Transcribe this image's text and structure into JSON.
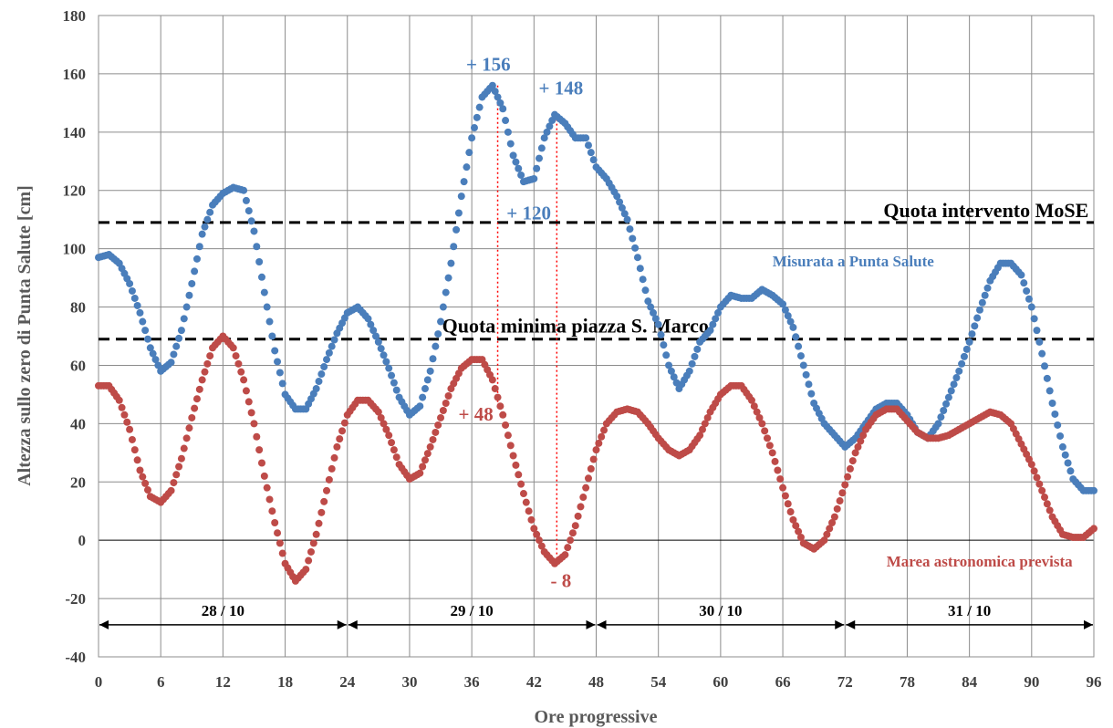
{
  "chart_data": {
    "type": "scatter",
    "title": "",
    "xlabel": "Ore progressive",
    "ylabel": "Altezza sullo zero di Punta Salute  [cm]",
    "xlim": [
      0,
      96
    ],
    "ylim": [
      -40,
      180
    ],
    "xticks": [
      0,
      6,
      12,
      18,
      24,
      30,
      36,
      42,
      48,
      54,
      60,
      66,
      72,
      78,
      84,
      90,
      96
    ],
    "yticks": [
      -40,
      -20,
      0,
      20,
      40,
      60,
      80,
      100,
      120,
      140,
      160,
      180
    ],
    "grid": true,
    "colors": {
      "measured": "#4a7ebb",
      "predicted": "#be4b48",
      "annot_line": "#ff0000"
    },
    "series": [
      {
        "name": "Misurata a Punta Salute",
        "key": "measured",
        "points": [
          [
            0,
            97
          ],
          [
            1,
            98
          ],
          [
            2,
            95
          ],
          [
            3,
            88
          ],
          [
            4,
            78
          ],
          [
            5,
            66
          ],
          [
            6,
            58
          ],
          [
            7,
            61
          ],
          [
            8,
            72
          ],
          [
            9,
            88
          ],
          [
            10,
            105
          ],
          [
            11,
            115
          ],
          [
            12,
            119
          ],
          [
            13,
            121
          ],
          [
            14,
            120
          ],
          [
            15,
            106
          ],
          [
            16,
            85
          ],
          [
            17,
            65
          ],
          [
            18,
            50
          ],
          [
            19,
            45
          ],
          [
            20,
            45
          ],
          [
            21,
            52
          ],
          [
            22,
            62
          ],
          [
            23,
            71
          ],
          [
            24,
            78
          ],
          [
            25,
            80
          ],
          [
            26,
            76
          ],
          [
            27,
            68
          ],
          [
            28,
            59
          ],
          [
            29,
            49
          ],
          [
            30,
            43
          ],
          [
            31,
            46
          ],
          [
            32,
            58
          ],
          [
            33,
            75
          ],
          [
            34,
            95
          ],
          [
            35,
            118
          ],
          [
            36,
            138
          ],
          [
            37,
            152
          ],
          [
            38,
            156
          ],
          [
            39,
            148
          ],
          [
            40,
            132
          ],
          [
            41,
            123
          ],
          [
            42,
            124
          ],
          [
            43,
            138
          ],
          [
            44,
            146
          ],
          [
            45,
            143
          ],
          [
            46,
            138
          ],
          [
            47,
            138
          ],
          [
            48,
            128
          ],
          [
            49,
            124
          ],
          [
            50,
            118
          ],
          [
            51,
            110
          ],
          [
            52,
            97
          ],
          [
            53,
            82
          ],
          [
            54,
            74
          ],
          [
            55,
            60
          ],
          [
            56,
            52
          ],
          [
            57,
            58
          ],
          [
            58,
            68
          ],
          [
            59,
            72
          ],
          [
            60,
            80
          ],
          [
            61,
            84
          ],
          [
            62,
            83
          ],
          [
            63,
            83
          ],
          [
            64,
            86
          ],
          [
            65,
            84
          ],
          [
            66,
            81
          ],
          [
            67,
            73
          ],
          [
            68,
            60
          ],
          [
            69,
            47
          ],
          [
            70,
            40
          ],
          [
            71,
            36
          ],
          [
            72,
            32
          ],
          [
            73,
            35
          ],
          [
            74,
            40
          ],
          [
            75,
            45
          ],
          [
            76,
            47
          ],
          [
            77,
            47
          ],
          [
            78,
            43
          ],
          [
            79,
            37
          ],
          [
            80,
            35
          ],
          [
            81,
            40
          ],
          [
            82,
            49
          ],
          [
            83,
            58
          ],
          [
            84,
            68
          ],
          [
            85,
            79
          ],
          [
            86,
            89
          ],
          [
            87,
            95
          ],
          [
            88,
            95
          ],
          [
            89,
            91
          ],
          [
            90,
            80
          ],
          [
            91,
            64
          ],
          [
            92,
            47
          ],
          [
            93,
            32
          ],
          [
            94,
            21
          ],
          [
            95,
            17
          ],
          [
            96,
            17
          ]
        ]
      },
      {
        "name": "Marea astronomica prevista",
        "key": "predicted",
        "points": [
          [
            0,
            53
          ],
          [
            1,
            53
          ],
          [
            2,
            48
          ],
          [
            3,
            38
          ],
          [
            4,
            24
          ],
          [
            5,
            15
          ],
          [
            6,
            13
          ],
          [
            7,
            17
          ],
          [
            8,
            28
          ],
          [
            9,
            42
          ],
          [
            10,
            55
          ],
          [
            11,
            66
          ],
          [
            12,
            70
          ],
          [
            13,
            66
          ],
          [
            14,
            55
          ],
          [
            15,
            40
          ],
          [
            16,
            22
          ],
          [
            17,
            6
          ],
          [
            18,
            -8
          ],
          [
            19,
            -14
          ],
          [
            20,
            -10
          ],
          [
            21,
            2
          ],
          [
            22,
            17
          ],
          [
            23,
            32
          ],
          [
            24,
            43
          ],
          [
            25,
            48
          ],
          [
            26,
            48
          ],
          [
            27,
            44
          ],
          [
            28,
            36
          ],
          [
            29,
            26
          ],
          [
            30,
            21
          ],
          [
            31,
            23
          ],
          [
            32,
            32
          ],
          [
            33,
            42
          ],
          [
            34,
            52
          ],
          [
            35,
            59
          ],
          [
            36,
            62
          ],
          [
            37,
            62
          ],
          [
            38,
            55
          ],
          [
            39,
            43
          ],
          [
            40,
            29
          ],
          [
            41,
            16
          ],
          [
            42,
            4
          ],
          [
            43,
            -4
          ],
          [
            44,
            -8
          ],
          [
            45,
            -5
          ],
          [
            46,
            5
          ],
          [
            47,
            18
          ],
          [
            48,
            31
          ],
          [
            49,
            40
          ],
          [
            50,
            44
          ],
          [
            51,
            45
          ],
          [
            52,
            44
          ],
          [
            53,
            40
          ],
          [
            54,
            35
          ],
          [
            55,
            31
          ],
          [
            56,
            29
          ],
          [
            57,
            31
          ],
          [
            58,
            36
          ],
          [
            59,
            44
          ],
          [
            60,
            50
          ],
          [
            61,
            53
          ],
          [
            62,
            53
          ],
          [
            63,
            48
          ],
          [
            64,
            40
          ],
          [
            65,
            30
          ],
          [
            66,
            18
          ],
          [
            67,
            7
          ],
          [
            68,
            -1
          ],
          [
            69,
            -3
          ],
          [
            70,
            0
          ],
          [
            71,
            8
          ],
          [
            72,
            19
          ],
          [
            73,
            30
          ],
          [
            74,
            38
          ],
          [
            75,
            43
          ],
          [
            76,
            45
          ],
          [
            77,
            45
          ],
          [
            78,
            41
          ],
          [
            79,
            37
          ],
          [
            80,
            35
          ],
          [
            81,
            35
          ],
          [
            82,
            36
          ],
          [
            83,
            38
          ],
          [
            84,
            40
          ],
          [
            85,
            42
          ],
          [
            86,
            44
          ],
          [
            87,
            43
          ],
          [
            88,
            40
          ],
          [
            89,
            33
          ],
          [
            90,
            26
          ],
          [
            91,
            17
          ],
          [
            92,
            8
          ],
          [
            93,
            2
          ],
          [
            94,
            1
          ],
          [
            95,
            1
          ],
          [
            96,
            4
          ]
        ]
      }
    ],
    "reference_lines": [
      {
        "y": 109,
        "label": "Quota intervento MoSE"
      },
      {
        "y": 69,
        "label": "Quota minima piazza S. Marco"
      }
    ],
    "day_spans": [
      {
        "from": 0,
        "to": 24,
        "label": "28 / 10"
      },
      {
        "from": 24,
        "to": 48,
        "label": "29 / 10"
      },
      {
        "from": 48,
        "to": 72,
        "label": "30 / 10"
      },
      {
        "from": 72,
        "to": 96,
        "label": "31 / 10"
      }
    ],
    "day_arrow_y": -29,
    "series_labels": [
      {
        "text": "Misurata a Punta Salute",
        "series": "measured",
        "x": 65,
        "y": 94
      },
      {
        "text": "Marea astronomica prevista",
        "series": "predicted",
        "x": 76,
        "y": -9
      }
    ],
    "annotations": [
      {
        "text": "+ 156",
        "series": "measured",
        "x": 37.6,
        "y": 161
      },
      {
        "text": "+ 148",
        "series": "measured",
        "x": 44.6,
        "y": 153
      },
      {
        "text": "+ 120",
        "series": "measured",
        "x": 41.5,
        "y": 110
      },
      {
        "text": "+ 48",
        "series": "predicted",
        "x": 36.4,
        "y": 41
      },
      {
        "text": "- 8",
        "series": "predicted",
        "x": 44.6,
        "y": -16
      }
    ],
    "vertical_markers": [
      {
        "x": 38.5,
        "y_from": 47,
        "y_to": 156
      },
      {
        "x": 44.2,
        "y_from": -8,
        "y_to": 146
      }
    ]
  }
}
